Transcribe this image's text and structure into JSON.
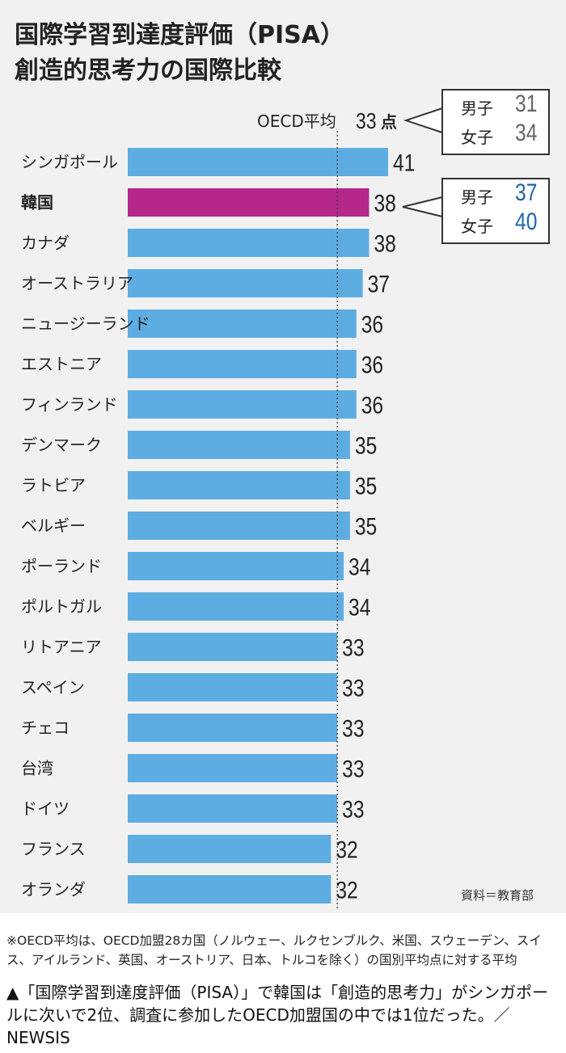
{
  "header": {
    "title_line1": "国際学習到達度評価（PISA）",
    "title_line2": "創造的思考力の国際比較"
  },
  "chart_data": {
    "type": "bar",
    "orientation": "horizontal",
    "categories": [
      "シンガポール",
      "韓国",
      "カナダ",
      "オーストラリア",
      "ニュージーランド",
      "エストニア",
      "フィンランド",
      "デンマーク",
      "ラトビア",
      "ベルギー",
      "ポーランド",
      "ポルトガル",
      "リトアニア",
      "スペイン",
      "チェコ",
      "台湾",
      "ドイツ",
      "フランス",
      "オランダ"
    ],
    "values": [
      41,
      38,
      38,
      37,
      36,
      36,
      36,
      35,
      35,
      35,
      34,
      34,
      33,
      33,
      33,
      33,
      33,
      32,
      32
    ],
    "highlight_category": "韓国",
    "bar_color": "#5dade2",
    "highlight_color": "#b5278b",
    "reference_line": {
      "label": "OECD平均",
      "value": 33,
      "value_text": "33",
      "unit": "点"
    },
    "xlim": [
      0,
      41
    ],
    "grid": false,
    "legend": "none"
  },
  "callouts": {
    "oecd": {
      "rows": [
        {
          "label": "男子",
          "value": "31"
        },
        {
          "label": "女子",
          "value": "34"
        }
      ],
      "value_color": "#666666"
    },
    "korea": {
      "rows": [
        {
          "label": "男子",
          "value": "37"
        },
        {
          "label": "女子",
          "value": "40"
        }
      ],
      "value_color": "#1e63a8"
    }
  },
  "source": "資料＝教育部",
  "footnote": "※OECD平均は、OECD加盟28カ国（ノルウェー、ルクセンブルク、米国、スウェーデン、スイス、アイルランド、英国、オーストリア、日本、トルコを除く）の国別平均点に対する平均",
  "caption": "▲「国際学習到達度評価（PISA）」で韓国は「創造的思考力」がシンガポールに次いで2位、調査に参加したOECD加盟国の中では1位だった。／NEWSIS"
}
